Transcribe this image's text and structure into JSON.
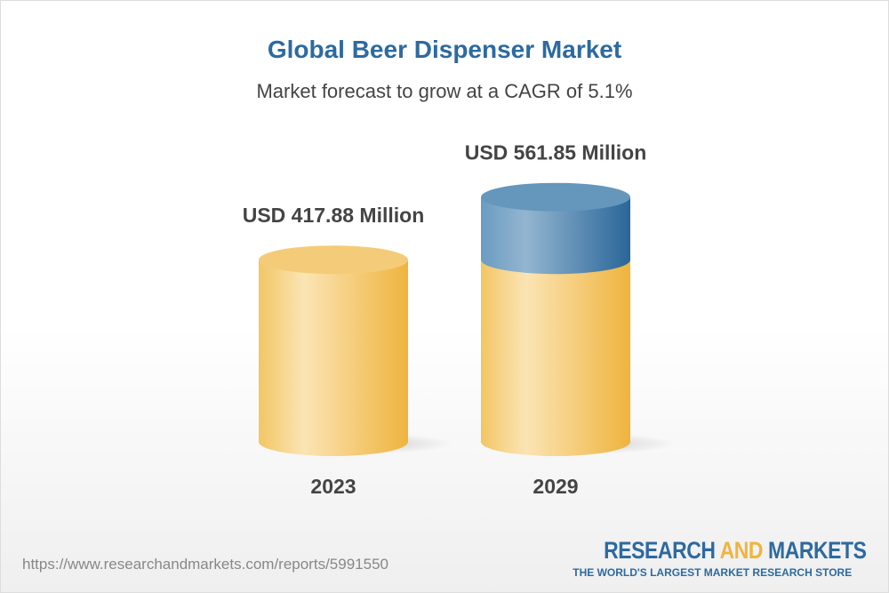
{
  "title": "Global Beer Dispenser Market",
  "subtitle": "Market forecast to grow at a CAGR of 5.1%",
  "chart_data": {
    "type": "bar",
    "style": "3d-cylinder",
    "categories": [
      "2023",
      "2029"
    ],
    "values": [
      417.88,
      561.85
    ],
    "data_labels": [
      "USD 417.88 Million",
      "USD 561.85 Million"
    ],
    "colors": {
      "base": "#f2c462",
      "growth": "#2d6aa0"
    }
  },
  "footer": {
    "url": "https://www.researchandmarkets.com/reports/5991550",
    "logo": {
      "word1": "RESEARCH ",
      "word2": "AND",
      "word3": " MARKETS",
      "tagline": "THE WORLD'S LARGEST MARKET RESEARCH STORE"
    }
  }
}
